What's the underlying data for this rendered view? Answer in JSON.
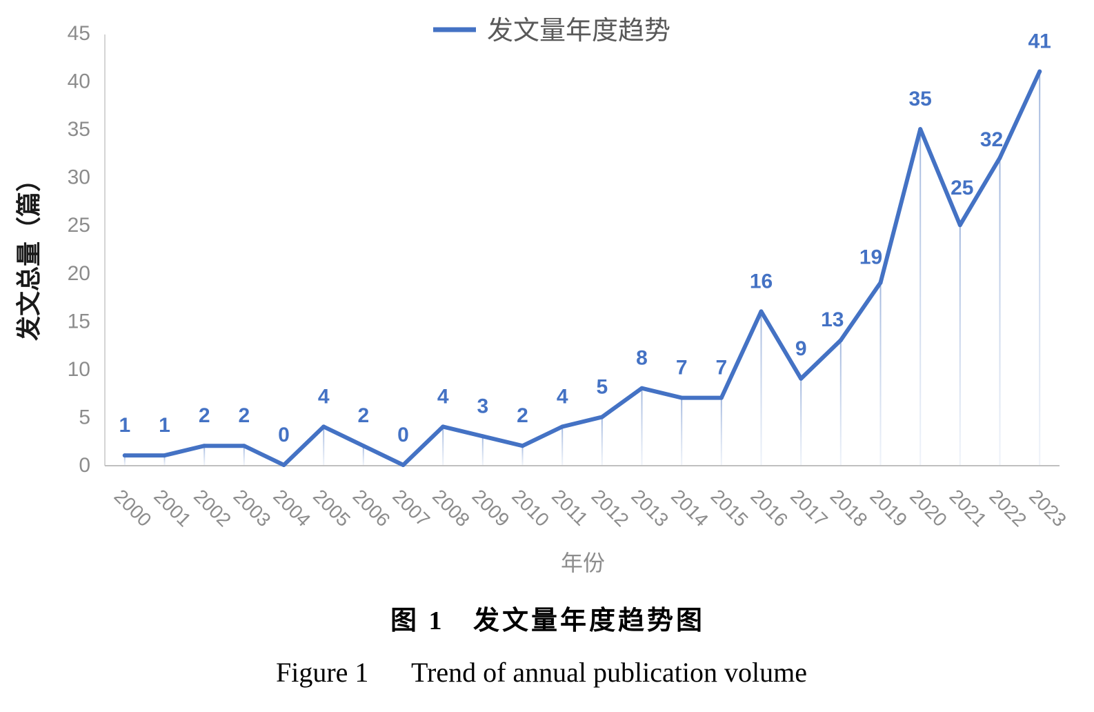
{
  "chart_data": {
    "type": "line",
    "categories": [
      "2000",
      "2001",
      "2002",
      "2003",
      "2004",
      "2005",
      "2006",
      "2007",
      "2008",
      "2009",
      "2010",
      "2011",
      "2012",
      "2013",
      "2014",
      "2015",
      "2016",
      "2017",
      "2018",
      "2019",
      "2020",
      "2021",
      "2022",
      "2023"
    ],
    "series": [
      {
        "name": "发文量年度趋势",
        "values": [
          1,
          1,
          2,
          2,
          0,
          4,
          2,
          0,
          4,
          3,
          2,
          4,
          5,
          8,
          7,
          7,
          16,
          9,
          13,
          19,
          35,
          25,
          32,
          41
        ],
        "color": "#4472c4"
      }
    ],
    "xlabel": "年份",
    "ylabel": "发文总量（篇）",
    "ylim": [
      0,
      45
    ],
    "yticks": [
      0,
      5,
      10,
      15,
      20,
      25,
      30,
      35,
      40,
      45
    ],
    "legend": "top-center",
    "grid": false,
    "data_labels": true,
    "drop_lines": true
  },
  "caption": {
    "zh_number": "图 1",
    "zh_title": "发文量年度趋势图",
    "en_number": "Figure 1",
    "en_title": "Trend of annual publication volume"
  }
}
